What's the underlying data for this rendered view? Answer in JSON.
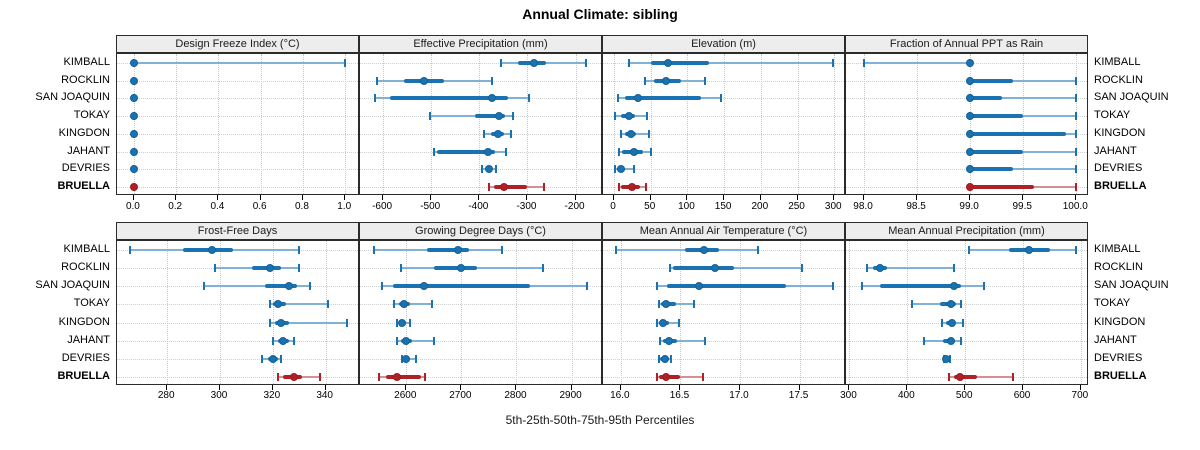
{
  "title": "Annual Climate: sibling",
  "caption": "5th-25th-50th-75th-95th Percentiles",
  "locations": [
    "KIMBALL",
    "ROCKLIN",
    "SAN JOAQUIN",
    "TOKAY",
    "KINGDON",
    "JAHANT",
    "DEVRIES",
    "BRUELLA"
  ],
  "highlight": "BRUELLA",
  "colors": {
    "series_blue": "#1a72b0",
    "series_blue_light": "#82b1d6",
    "series_blue_dot": "#166198",
    "highlight_red": "#b02126",
    "highlight_red_light": "#d49193",
    "highlight_red_dot": "#9c1c21",
    "header_bg": "#ededed",
    "panel_border": "#2b2b2b",
    "grid": "#c9c9c9"
  },
  "chart_data": {
    "type": "percentile_dotplot",
    "layout": "2 rows x 4 columns trellis, shared row categories",
    "percentiles": [
      5,
      25,
      50,
      75,
      95
    ],
    "grid": true,
    "row_order_top_to_bottom": [
      "KIMBALL",
      "ROCKLIN",
      "SAN JOAQUIN",
      "TOKAY",
      "KINGDON",
      "JAHANT",
      "DEVRIES",
      "BRUELLA"
    ],
    "panels": [
      {
        "title": "Design Freeze Index (°C)",
        "grid_pos": "top-1",
        "domain": [
          -0.08,
          1.07
        ],
        "ticks": [
          0.0,
          0.2,
          0.4,
          0.6,
          0.8,
          1.0
        ],
        "tick_labels": [
          "0.0",
          "0.2",
          "0.4",
          "0.6",
          "0.8",
          "1.0"
        ],
        "values": {
          "KIMBALL": [
            0,
            0,
            0,
            0,
            1.0
          ],
          "ROCKLIN": [
            0,
            0,
            0,
            0,
            0
          ],
          "SAN JOAQUIN": [
            0,
            0,
            0,
            0,
            0
          ],
          "TOKAY": [
            0,
            0,
            0,
            0,
            0
          ],
          "KINGDON": [
            0,
            0,
            0,
            0,
            0
          ],
          "JAHANT": [
            0,
            0,
            0,
            0,
            0
          ],
          "DEVRIES": [
            0,
            0,
            0,
            0,
            0
          ],
          "BRUELLA": [
            0,
            0,
            0,
            0,
            0
          ]
        }
      },
      {
        "title": "Effective Precipitation (mm)",
        "grid_pos": "top-2",
        "domain": [
          -648,
          -143
        ],
        "ticks": [
          -600,
          -500,
          -400,
          -300,
          -200
        ],
        "tick_labels": [
          "-600",
          "-500",
          "-400",
          "-300",
          "-200"
        ],
        "values": {
          "KIMBALL": [
            -355,
            -320,
            -287,
            -262,
            -178
          ],
          "ROCKLIN": [
            -612,
            -556,
            -514,
            -473,
            -374
          ],
          "SAN JOAQUIN": [
            -616,
            -586,
            -374,
            -341,
            -297
          ],
          "TOKAY": [
            -503,
            -408,
            -360,
            -347,
            -330
          ],
          "KINGDON": [
            -390,
            -375,
            -362,
            -348,
            -335
          ],
          "JAHANT": [
            -495,
            -487,
            -382,
            -368,
            -345
          ],
          "DEVRIES": [
            -395,
            -388,
            -380,
            -373,
            -366
          ],
          "BRUELLA": [
            -380,
            -370,
            -349,
            -300,
            -265
          ]
        }
      },
      {
        "title": "Elevation (m)",
        "grid_pos": "top-3",
        "domain": [
          -15,
          316
        ],
        "ticks": [
          0,
          50,
          100,
          150,
          200,
          250,
          300
        ],
        "tick_labels": [
          "0",
          "50",
          "100",
          "150",
          "200",
          "250",
          "300"
        ],
        "values": {
          "KIMBALL": [
            20,
            51,
            73,
            130,
            298
          ],
          "ROCKLIN": [
            42,
            54,
            71,
            91,
            124
          ],
          "SAN JOAQUIN": [
            6,
            15,
            33,
            118,
            146
          ],
          "TOKAY": [
            2,
            10,
            20,
            28,
            45
          ],
          "KINGDON": [
            10,
            15,
            23,
            30,
            48
          ],
          "JAHANT": [
            7,
            11,
            27,
            40,
            50
          ],
          "DEVRIES": [
            2,
            4,
            10,
            15,
            27
          ],
          "BRUELLA": [
            7,
            10,
            25,
            36,
            44
          ]
        }
      },
      {
        "title": "Fraction of Annual PPT as Rain",
        "grid_pos": "top-4",
        "domain": [
          97.83,
          100.12
        ],
        "ticks": [
          98.0,
          98.5,
          99.0,
          99.5,
          100.0
        ],
        "tick_labels": [
          "98.0",
          "98.5",
          "99.0",
          "99.5",
          "100.0"
        ],
        "values": {
          "KIMBALL": [
            98.0,
            99.0,
            99.0,
            99.0,
            99.0
          ],
          "ROCKLIN": [
            99.0,
            99.0,
            99.0,
            99.4,
            100.0
          ],
          "SAN JOAQUIN": [
            99.0,
            99.0,
            99.0,
            99.3,
            100.0
          ],
          "TOKAY": [
            99.0,
            99.0,
            99.0,
            99.5,
            100.0
          ],
          "KINGDON": [
            99.0,
            99.0,
            99.0,
            99.9,
            100.0
          ],
          "JAHANT": [
            99.0,
            99.0,
            99.0,
            99.5,
            100.0
          ],
          "DEVRIES": [
            99.0,
            99.0,
            99.0,
            99.4,
            100.0
          ],
          "BRUELLA": [
            99.0,
            99.0,
            99.0,
            99.6,
            100.0
          ]
        }
      },
      {
        "title": "Frost-Free Days",
        "grid_pos": "bottom-1",
        "domain": [
          261,
          353
        ],
        "ticks": [
          280,
          300,
          320,
          340
        ],
        "tick_labels": [
          "280",
          "300",
          "320",
          "340"
        ],
        "values": {
          "KIMBALL": [
            266,
            286,
            297,
            305,
            330
          ],
          "ROCKLIN": [
            298,
            312,
            319,
            323,
            330
          ],
          "SAN JOAQUIN": [
            294,
            317,
            326,
            329,
            334
          ],
          "TOKAY": [
            319,
            320,
            322,
            325,
            341
          ],
          "KINGDON": [
            319,
            321,
            323,
            326,
            348
          ],
          "JAHANT": [
            320,
            322,
            324,
            326,
            328
          ],
          "DEVRIES": [
            316,
            318,
            320,
            322,
            323
          ],
          "BRUELLA": [
            322,
            324,
            328,
            331,
            338
          ]
        }
      },
      {
        "title": "Growing Degree Days (°C)",
        "grid_pos": "bottom-2",
        "domain": [
          2516,
          2957
        ],
        "ticks": [
          2600,
          2700,
          2800,
          2900
        ],
        "tick_labels": [
          "2600",
          "2700",
          "2800",
          "2900"
        ],
        "values": {
          "KIMBALL": [
            2541,
            2638,
            2694,
            2714,
            2774
          ],
          "ROCKLIN": [
            2590,
            2650,
            2700,
            2729,
            2849
          ],
          "SAN JOAQUIN": [
            2556,
            2576,
            2633,
            2824,
            2928
          ],
          "TOKAY": [
            2578,
            2586,
            2596,
            2607,
            2647
          ],
          "KINGDON": [
            2583,
            2587,
            2593,
            2599,
            2607
          ],
          "JAHANT": [
            2583,
            2590,
            2600,
            2610,
            2650
          ],
          "DEVRIES": [
            2592,
            2597,
            2600,
            2606,
            2618
          ],
          "BRUELLA": [
            2551,
            2563,
            2583,
            2626,
            2634
          ]
        }
      },
      {
        "title": "Mean Annual Air Temperature (°C)",
        "grid_pos": "bottom-3",
        "domain": [
          15.85,
          17.89
        ],
        "ticks": [
          16.0,
          16.5,
          17.0,
          17.5
        ],
        "tick_labels": [
          "16.0",
          "16.5",
          "17.0",
          "17.5"
        ],
        "values": {
          "KIMBALL": [
            15.96,
            16.54,
            16.7,
            16.82,
            17.15
          ],
          "ROCKLIN": [
            16.41,
            16.44,
            16.79,
            16.95,
            17.52
          ],
          "SAN JOAQUIN": [
            16.3,
            16.39,
            16.66,
            17.39,
            17.78
          ],
          "TOKAY": [
            16.32,
            16.34,
            16.38,
            16.46,
            16.61
          ],
          "KINGDON": [
            16.3,
            16.32,
            16.35,
            16.4,
            16.49
          ],
          "JAHANT": [
            16.33,
            16.35,
            16.4,
            16.47,
            16.71
          ],
          "DEVRIES": [
            16.32,
            16.33,
            16.37,
            16.39,
            16.42
          ],
          "BRUELLA": [
            16.3,
            16.32,
            16.38,
            16.5,
            16.69
          ]
        }
      },
      {
        "title": "Mean Annual Precipitation (mm)",
        "grid_pos": "bottom-4",
        "domain": [
          294,
          714
        ],
        "ticks": [
          300,
          400,
          500,
          600,
          700
        ],
        "tick_labels": [
          "300",
          "400",
          "500",
          "600",
          "700"
        ],
        "values": {
          "KIMBALL": [
            506,
            576,
            610,
            647,
            691
          ],
          "ROCKLIN": [
            331,
            340,
            353,
            365,
            480
          ],
          "SAN JOAQUIN": [
            322,
            352,
            480,
            493,
            532
          ],
          "TOKAY": [
            408,
            457,
            476,
            484,
            492
          ],
          "KINGDON": [
            460,
            467,
            477,
            483,
            497
          ],
          "JAHANT": [
            428,
            462,
            476,
            483,
            492
          ],
          "DEVRIES": [
            463,
            465,
            467,
            470,
            473
          ],
          "BRUELLA": [
            472,
            481,
            491,
            520,
            583
          ]
        }
      }
    ]
  }
}
